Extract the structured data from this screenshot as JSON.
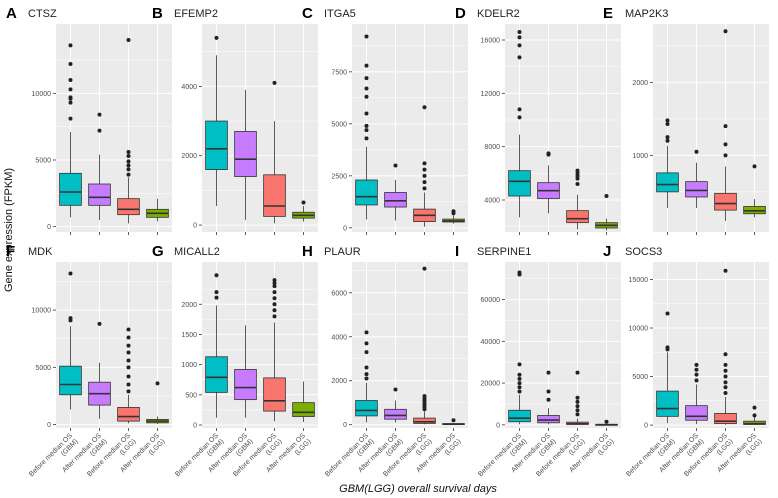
{
  "colors": {
    "before_gbm": "#00BFC4",
    "after_gbm": "#C77CFF",
    "before_lgg": "#F8766D",
    "after_lgg": "#7CAE00",
    "panel_bg": "#EBEBEB",
    "grid": "#FFFFFF",
    "outlier": "#222222"
  },
  "figure": {
    "ylabel": "Gene expression (FPKM)",
    "xlabel": "GBM(LGG) overall survival days"
  },
  "chart_data": [
    {
      "type": "box",
      "letter": "A",
      "title": "CTSZ",
      "ylim": [
        -400,
        15200
      ],
      "ticks": [
        0,
        5000,
        10000
      ],
      "tick_labels": [
        "0",
        "5000",
        "10000"
      ],
      "categories": [
        "Before median OS (GBM)",
        "After median OS (GBM)",
        "Before median OS (LGG)",
        "After median OS (LGG)"
      ],
      "show_categories": false,
      "boxes": [
        {
          "min": 700,
          "q1": 1600,
          "median": 2600,
          "q3": 4000,
          "max": 7100,
          "outliers": [
            8100,
            9300,
            9600,
            9700,
            10300,
            11000,
            12200,
            13600
          ]
        },
        {
          "min": 500,
          "q1": 1600,
          "median": 2200,
          "q3": 3200,
          "max": 5400,
          "outliers": [
            7200,
            8400
          ]
        },
        {
          "min": 250,
          "q1": 900,
          "median": 1300,
          "q3": 2100,
          "max": 3700,
          "outliers": [
            3900,
            4300,
            4600,
            4900,
            5300,
            5600,
            14000
          ]
        },
        {
          "min": 400,
          "q1": 700,
          "median": 1000,
          "q3": 1300,
          "max": 2100,
          "outliers": []
        }
      ]
    },
    {
      "type": "box",
      "letter": "B",
      "title": "EFEMP2",
      "ylim": [
        -200,
        5800
      ],
      "ticks": [
        0,
        2000,
        4000
      ],
      "tick_labels": [
        "0",
        "2000",
        "4000"
      ],
      "categories": [
        "Before median OS (GBM)",
        "After median OS (GBM)",
        "Before median OS (LGG)",
        "After median OS (LGG)"
      ],
      "show_categories": false,
      "boxes": [
        {
          "min": 550,
          "q1": 1600,
          "median": 2200,
          "q3": 3000,
          "max": 4900,
          "outliers": [
            5400
          ]
        },
        {
          "min": 150,
          "q1": 1400,
          "median": 1900,
          "q3": 2700,
          "max": 3900,
          "outliers": []
        },
        {
          "min": 50,
          "q1": 250,
          "median": 550,
          "q3": 1450,
          "max": 3000,
          "outliers": [
            4100
          ]
        },
        {
          "min": 100,
          "q1": 200,
          "median": 280,
          "q3": 370,
          "max": 550,
          "outliers": [
            650
          ]
        }
      ]
    },
    {
      "type": "box",
      "letter": "C",
      "title": "ITGA5",
      "ylim": [
        -200,
        9800
      ],
      "ticks": [
        0,
        2500,
        5000,
        7500
      ],
      "tick_labels": [
        "0",
        "2500",
        "5000",
        "7500"
      ],
      "categories": [
        "Before median OS (GBM)",
        "After median OS (GBM)",
        "Before median OS (LGG)",
        "After median OS (LGG)"
      ],
      "show_categories": false,
      "boxes": [
        {
          "min": 400,
          "q1": 1100,
          "median": 1500,
          "q3": 2300,
          "max": 3900,
          "outliers": [
            4300,
            4700,
            4900,
            5500,
            6300,
            6700,
            7200,
            7800,
            9200
          ]
        },
        {
          "min": 350,
          "q1": 1000,
          "median": 1300,
          "q3": 1700,
          "max": 2300,
          "outliers": [
            3000
          ]
        },
        {
          "min": 50,
          "q1": 300,
          "median": 600,
          "q3": 900,
          "max": 1700,
          "outliers": [
            1900,
            2200,
            2500,
            2800,
            3100,
            5800
          ]
        },
        {
          "min": 200,
          "q1": 280,
          "median": 330,
          "q3": 420,
          "max": 600,
          "outliers": [
            700,
            800
          ]
        }
      ]
    },
    {
      "type": "box",
      "letter": "D",
      "title": "KDELR2",
      "ylim": [
        1600,
        17200
      ],
      "ticks": [
        4000,
        8000,
        12000,
        16000
      ],
      "tick_labels": [
        "4000",
        "8000",
        "12000",
        "16000"
      ],
      "categories": [
        "Before median OS (GBM)",
        "After median OS (GBM)",
        "Before median OS (LGG)",
        "After median OS (LGG)"
      ],
      "show_categories": false,
      "boxes": [
        {
          "min": 2700,
          "q1": 4300,
          "median": 5400,
          "q3": 6200,
          "max": 8900,
          "outliers": [
            10200,
            10800,
            14700,
            15600,
            16200,
            16600
          ]
        },
        {
          "min": 3000,
          "q1": 4100,
          "median": 4700,
          "q3": 5300,
          "max": 6600,
          "outliers": [
            7400,
            7500
          ]
        },
        {
          "min": 1800,
          "q1": 2300,
          "median": 2600,
          "q3": 3200,
          "max": 4400,
          "outliers": [
            5200,
            5600,
            5800,
            6000,
            6200
          ]
        },
        {
          "min": 1700,
          "q1": 1900,
          "median": 2100,
          "q3": 2300,
          "max": 2600,
          "outliers": [
            4300
          ]
        }
      ]
    },
    {
      "type": "box",
      "letter": "E",
      "title": "MAP2K3",
      "ylim": [
        -50,
        2800
      ],
      "ticks": [
        1000,
        2000
      ],
      "tick_labels": [
        "1000",
        "2000"
      ],
      "categories": [
        "Before median OS (GBM)",
        "After median OS (GBM)",
        "Before median OS (LGG)",
        "After median OS (LGG)"
      ],
      "show_categories": false,
      "boxes": [
        {
          "min": 280,
          "q1": 500,
          "median": 600,
          "q3": 760,
          "max": 1130,
          "outliers": [
            1200,
            1250,
            1430,
            1480
          ]
        },
        {
          "min": 280,
          "q1": 430,
          "median": 520,
          "q3": 640,
          "max": 900,
          "outliers": [
            1050
          ]
        },
        {
          "min": 100,
          "q1": 250,
          "median": 340,
          "q3": 480,
          "max": 850,
          "outliers": [
            1000,
            1150,
            1400,
            2700
          ]
        },
        {
          "min": 150,
          "q1": 200,
          "median": 240,
          "q3": 300,
          "max": 400,
          "outliers": [
            850
          ]
        }
      ]
    },
    {
      "type": "box",
      "letter": "F",
      "title": "MDK",
      "ylim": [
        -300,
        14200
      ],
      "ticks": [
        0,
        5000,
        10000
      ],
      "tick_labels": [
        "0",
        "5000",
        "10000"
      ],
      "categories": [
        "Before median OS (GBM)",
        "After median OS (GBM)",
        "Before median OS (LGG)",
        "After median OS (LGG)"
      ],
      "show_categories": true,
      "boxes": [
        {
          "min": 1300,
          "q1": 2600,
          "median": 3500,
          "q3": 5100,
          "max": 8600,
          "outliers": [
            9100,
            9300,
            13200
          ]
        },
        {
          "min": 500,
          "q1": 1700,
          "median": 2700,
          "q3": 3700,
          "max": 5400,
          "outliers": [
            8800
          ]
        },
        {
          "min": 100,
          "q1": 300,
          "median": 700,
          "q3": 1500,
          "max": 2600,
          "outliers": [
            2900,
            3500,
            4200,
            5000,
            5600,
            6300,
            6900,
            7600,
            8300
          ]
        },
        {
          "min": 50,
          "q1": 150,
          "median": 300,
          "q3": 450,
          "max": 700,
          "outliers": [
            3600
          ]
        }
      ]
    },
    {
      "type": "box",
      "letter": "G",
      "title": "MICALL2",
      "ylim": [
        -50,
        2700
      ],
      "ticks": [
        0,
        500,
        1000,
        1500,
        2000
      ],
      "tick_labels": [
        "0",
        "500",
        "1000",
        "1500",
        "2000"
      ],
      "categories": [
        "Before median OS (GBM)",
        "After median OS (GBM)",
        "Before median OS (LGG)",
        "After median OS (LGG)"
      ],
      "show_categories": true,
      "boxes": [
        {
          "min": 120,
          "q1": 540,
          "median": 790,
          "q3": 1130,
          "max": 1980,
          "outliers": [
            2110,
            2200,
            2480
          ]
        },
        {
          "min": 120,
          "q1": 420,
          "median": 620,
          "q3": 920,
          "max": 1650,
          "outliers": []
        },
        {
          "min": 60,
          "q1": 230,
          "median": 400,
          "q3": 780,
          "max": 1700,
          "outliers": [
            1800,
            1900,
            2000,
            2100,
            2200,
            2300,
            2350,
            2400
          ]
        },
        {
          "min": 50,
          "q1": 140,
          "median": 210,
          "q3": 370,
          "max": 720,
          "outliers": []
        }
      ]
    },
    {
      "type": "box",
      "letter": "H",
      "title": "PLAUR",
      "ylim": [
        -150,
        7400
      ],
      "ticks": [
        0,
        2000,
        4000,
        6000
      ],
      "tick_labels": [
        "0",
        "2000",
        "4000",
        "6000"
      ],
      "categories": [
        "Before median OS (GBM)",
        "After median OS (GBM)",
        "Before median OS (LGG)",
        "After median OS (LGG)"
      ],
      "show_categories": true,
      "boxes": [
        {
          "min": 100,
          "q1": 400,
          "median": 650,
          "q3": 1100,
          "max": 1900,
          "outliers": [
            2100,
            2300,
            2600,
            3300,
            3700,
            4200
          ]
        },
        {
          "min": 100,
          "q1": 250,
          "median": 420,
          "q3": 700,
          "max": 1100,
          "outliers": [
            1600
          ]
        },
        {
          "min": 20,
          "q1": 60,
          "median": 130,
          "q3": 300,
          "max": 600,
          "outliers": [
            700,
            800,
            900,
            1000,
            1100,
            1200,
            1300,
            7100
          ]
        },
        {
          "min": 10,
          "q1": 20,
          "median": 30,
          "q3": 50,
          "max": 80,
          "outliers": [
            200
          ]
        }
      ]
    },
    {
      "type": "box",
      "letter": "I",
      "title": "SERPINE1",
      "ylim": [
        -1500,
        78000
      ],
      "ticks": [
        0,
        20000,
        40000,
        60000
      ],
      "tick_labels": [
        "0",
        "20000",
        "40000",
        "60000"
      ],
      "categories": [
        "Before median OS (GBM)",
        "After median OS (GBM)",
        "Before median OS (LGG)",
        "After median OS (LGG)"
      ],
      "show_categories": true,
      "boxes": [
        {
          "min": 300,
          "q1": 1500,
          "median": 3200,
          "q3": 7000,
          "max": 14500,
          "outliers": [
            16000,
            18000,
            20000,
            22000,
            24000,
            29000,
            72000,
            73000
          ]
        },
        {
          "min": 300,
          "q1": 1000,
          "median": 2300,
          "q3": 4500,
          "max": 8000,
          "outliers": [
            12000,
            16000,
            25000
          ]
        },
        {
          "min": 30,
          "q1": 200,
          "median": 500,
          "q3": 1300,
          "max": 3000,
          "outliers": [
            5000,
            7000,
            9000,
            11000,
            13000,
            25000
          ]
        },
        {
          "min": 20,
          "q1": 60,
          "median": 120,
          "q3": 250,
          "max": 500,
          "outliers": [
            1500
          ]
        }
      ]
    },
    {
      "type": "box",
      "letter": "J",
      "title": "SOCS3",
      "ylim": [
        -300,
        16800
      ],
      "ticks": [
        0,
        5000,
        10000,
        15000
      ],
      "tick_labels": [
        "0",
        "5000",
        "10000",
        "15000"
      ],
      "categories": [
        "Before median OS (GBM)",
        "After median OS (GBM)",
        "Before median OS (LGG)",
        "After median OS (LGG)"
      ],
      "show_categories": true,
      "boxes": [
        {
          "min": 200,
          "q1": 900,
          "median": 1700,
          "q3": 3500,
          "max": 7500,
          "outliers": [
            7800,
            8000,
            11500
          ]
        },
        {
          "min": 100,
          "q1": 500,
          "median": 900,
          "q3": 2000,
          "max": 4200,
          "outliers": [
            4600,
            5200,
            5700,
            6200
          ]
        },
        {
          "min": 30,
          "q1": 150,
          "median": 400,
          "q3": 1200,
          "max": 2900,
          "outliers": [
            3300,
            3900,
            4400,
            5000,
            5600,
            6200,
            7300,
            15900
          ]
        },
        {
          "min": 20,
          "q1": 60,
          "median": 150,
          "q3": 400,
          "max": 900,
          "outliers": [
            1000,
            1800
          ]
        }
      ]
    }
  ]
}
